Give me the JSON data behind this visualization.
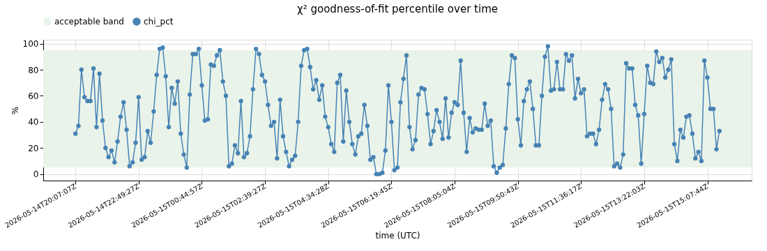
{
  "chart_data": {
    "type": "line",
    "title": "χ² goodness-of-fit percentile over time",
    "xlabel": "time (UTC)",
    "ylabel": "%",
    "categories": [
      "2026-05-14T20:07:07Z",
      null,
      null,
      null,
      null,
      null,
      null,
      null,
      null,
      null,
      null,
      null,
      null,
      null,
      null,
      null,
      null,
      null,
      null,
      null,
      null,
      "2026-05-14T22:49:27Z",
      null,
      null,
      null,
      null,
      null,
      null,
      null,
      null,
      null,
      null,
      null,
      null,
      null,
      null,
      null,
      null,
      null,
      null,
      null,
      null,
      "2026-05-15T00:44:57Z",
      null,
      null,
      null,
      null,
      null,
      null,
      null,
      null,
      null,
      null,
      null,
      null,
      null,
      null,
      null,
      null,
      null,
      null,
      null,
      null,
      "2026-05-15T02:39:27Z",
      null,
      null,
      null,
      null,
      null,
      null,
      null,
      null,
      null,
      null,
      null,
      null,
      null,
      null,
      null,
      null,
      null,
      null,
      null,
      null,
      "2026-05-15T04:34:28Z",
      null,
      null,
      null,
      null,
      null,
      null,
      null,
      null,
      null,
      null,
      null,
      null,
      null,
      null,
      null,
      null,
      null,
      null,
      null,
      null,
      "2026-05-15T06:19:45Z",
      null,
      null,
      null,
      null,
      null,
      null,
      null,
      null,
      null,
      null,
      null,
      null,
      null,
      null,
      null,
      null,
      null,
      null,
      null,
      null,
      "2026-05-15T08:05:04Z",
      null,
      null,
      null,
      null,
      null,
      null,
      null,
      null,
      null,
      null,
      null,
      null,
      null,
      null,
      null,
      null,
      null,
      null,
      null,
      null,
      "2026-05-15T09:50:43Z",
      null,
      null,
      null,
      null,
      null,
      null,
      null,
      null,
      null,
      null,
      null,
      null,
      null,
      null,
      null,
      null,
      null,
      null,
      null,
      null,
      "2026-05-15T11:36:17Z",
      null,
      null,
      null,
      null,
      null,
      null,
      null,
      null,
      null,
      null,
      null,
      null,
      null,
      null,
      null,
      null,
      null,
      null,
      null,
      null,
      "2026-05-15T13:22:03Z",
      null,
      null,
      null,
      null,
      null,
      null,
      null,
      null,
      null,
      null,
      null,
      null,
      null,
      null,
      null,
      null,
      null,
      null,
      null,
      null,
      "2026-05-15T15:07:44Z",
      null,
      null,
      null,
      null
    ],
    "series": [
      {
        "name": "chi_pct",
        "color": "#4682b4",
        "values": [
          31,
          37,
          80,
          59,
          56,
          56,
          81,
          36,
          77,
          41,
          20,
          13,
          18,
          9,
          25,
          44,
          55,
          34,
          6,
          9,
          24,
          59,
          11,
          13,
          33,
          24,
          48,
          76,
          96,
          97,
          75,
          36,
          66,
          54,
          71,
          31,
          15,
          5,
          61,
          92,
          92,
          96,
          68,
          41,
          42,
          84,
          83,
          91,
          95,
          71,
          60,
          6,
          8,
          22,
          16,
          56,
          13,
          16,
          29,
          65,
          96,
          92,
          76,
          71,
          53,
          37,
          40,
          12,
          57,
          29,
          17,
          6,
          11,
          14,
          40,
          83,
          95,
          96,
          82,
          65,
          72,
          57,
          68,
          44,
          36,
          23,
          17,
          70,
          76,
          25,
          64,
          40,
          23,
          15,
          29,
          31,
          53,
          37,
          11,
          13,
          0,
          0,
          1,
          18,
          68,
          40,
          3,
          5,
          55,
          73,
          91,
          36,
          19,
          26,
          61,
          66,
          65,
          46,
          23,
          33,
          49,
          40,
          27,
          58,
          28,
          47,
          55,
          53,
          87,
          47,
          17,
          43,
          32,
          35,
          34,
          34,
          54,
          37,
          41,
          6,
          1,
          5,
          7,
          35,
          69,
          91,
          89,
          42,
          22,
          56,
          65,
          71,
          50,
          22,
          22,
          60,
          90,
          98,
          64,
          65,
          86,
          65,
          65,
          92,
          87,
          91,
          58,
          73,
          62,
          65,
          29,
          31,
          31,
          23,
          34,
          57,
          69,
          65,
          50,
          6,
          8,
          5,
          15,
          85,
          81,
          81,
          53,
          45,
          8,
          46,
          83,
          70,
          69,
          94,
          86,
          89,
          74,
          80,
          88,
          23,
          10,
          34,
          28,
          44,
          45,
          31,
          12,
          17,
          10,
          87,
          74,
          50,
          50,
          19,
          33
        ]
      }
    ],
    "bands": [
      {
        "axis": "y",
        "from": 5,
        "to": 95,
        "label": "acceptable band",
        "color": "#e9f3e9"
      }
    ],
    "ylim": [
      -5,
      103
    ],
    "yticks": [
      0,
      20,
      40,
      60,
      80,
      100
    ],
    "grid": true,
    "legend": "top",
    "marker": "circle",
    "line_style": "solid"
  }
}
